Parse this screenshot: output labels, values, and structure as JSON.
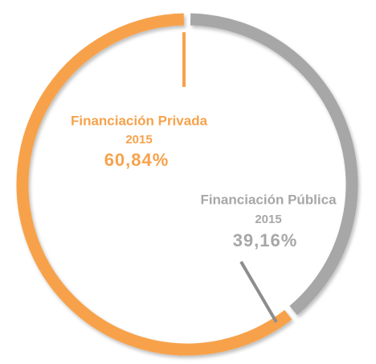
{
  "chart_data": {
    "type": "donut",
    "categories": [
      "Financiación Privada",
      "Financiación Pública"
    ],
    "category_years": [
      "2015",
      "2015"
    ],
    "values": [
      60.84,
      39.16
    ],
    "value_labels": [
      "60,84%",
      "39,16%"
    ],
    "colors": [
      "#f7a24b",
      "#a7a7a7"
    ]
  }
}
